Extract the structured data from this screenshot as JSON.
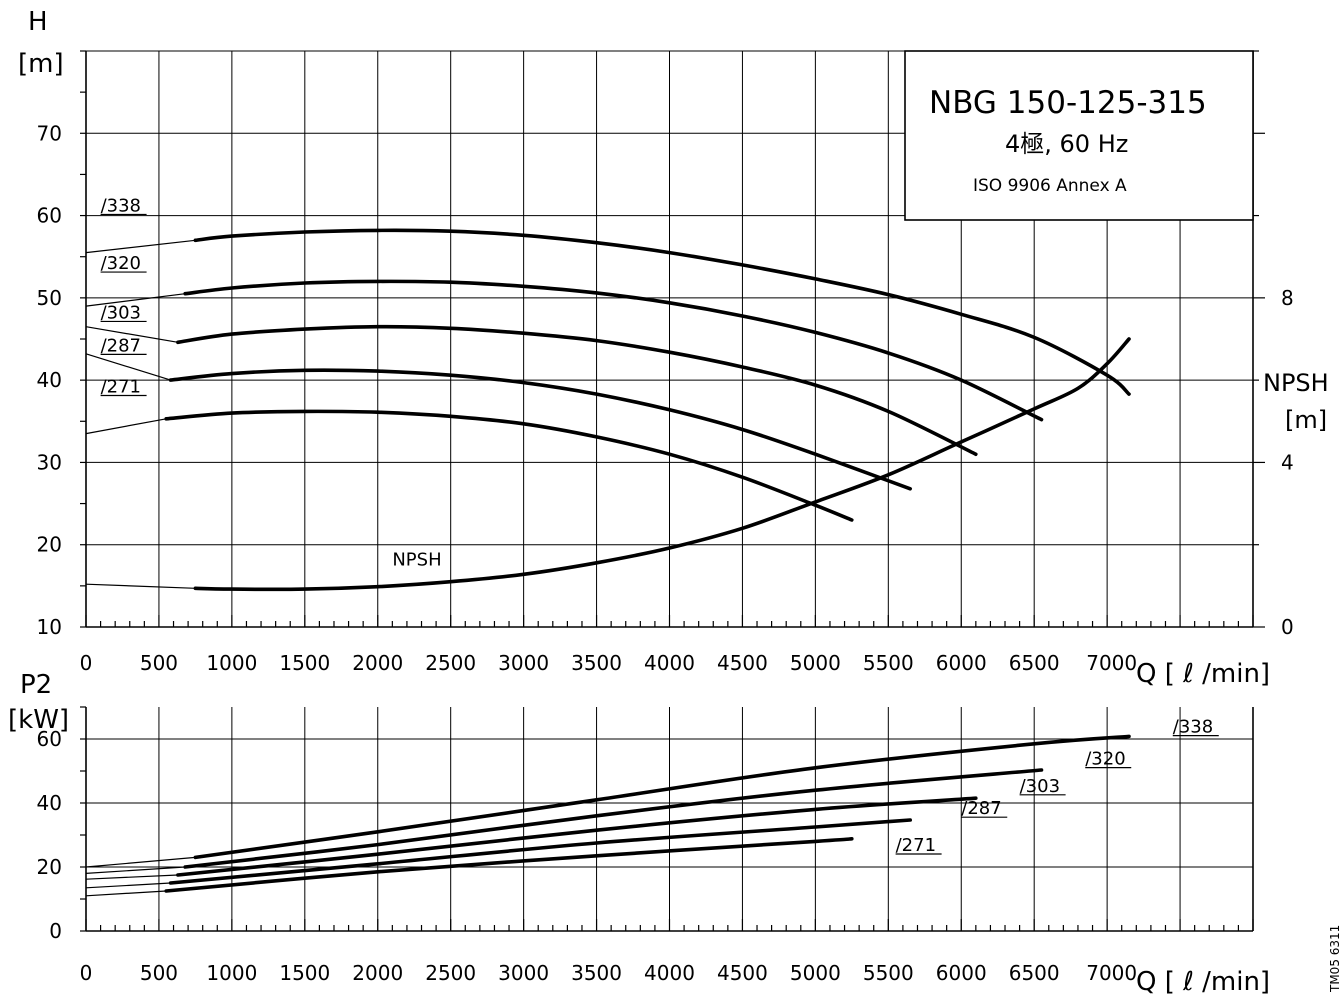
{
  "title_box": {
    "model": "NBG 150-125-315",
    "subtitle": "4極, 60 Hz",
    "standard": "ISO 9906 Annex A"
  },
  "doc_code": "TM05 6311",
  "colors": {
    "ink": "#000000",
    "background": "#ffffff"
  },
  "chart_data": [
    {
      "id": "head",
      "type": "line",
      "xlabel": "Q [ ℓ /min]",
      "ylabel_line1": "H",
      "ylabel_line2": "[m]",
      "xlim": [
        0,
        8000
      ],
      "ylim": [
        10,
        80
      ],
      "x_ticks": [
        0,
        500,
        1000,
        1500,
        2000,
        2500,
        3000,
        3500,
        4000,
        4500,
        5000,
        5500,
        6000,
        6500,
        7000
      ],
      "x_tick_labels": [
        "0",
        "500",
        "1000",
        "1500",
        "2000",
        "2500",
        "3000",
        "3500",
        "4000",
        "4500",
        "5000",
        "5500",
        "6000",
        "6500",
        "7000"
      ],
      "y_ticks": [
        10,
        20,
        30,
        40,
        50,
        60,
        70
      ],
      "y_tick_labels": [
        "10",
        "20",
        "30",
        "40",
        "50",
        "60",
        "70"
      ],
      "secondary_axis": {
        "label_line1": "NPSH",
        "label_line2": "[m]",
        "range": [
          0,
          14
        ],
        "ticks": [
          0,
          4,
          8
        ],
        "tick_labels": [
          "0",
          "4",
          "8"
        ]
      },
      "grid": true,
      "series": [
        {
          "name": "/338",
          "label_at": [
            100,
            60.5
          ],
          "extension": [
            [
              0,
              55.5
            ],
            [
              750,
              57
            ]
          ],
          "x": [
            750,
            1000,
            1500,
            2000,
            2500,
            3000,
            3500,
            4000,
            4500,
            5000,
            5500,
            6000,
            6500,
            7000,
            7150
          ],
          "y": [
            57,
            57.5,
            58,
            58.2,
            58.1,
            57.6,
            56.7,
            55.5,
            54,
            52.3,
            50.4,
            48,
            45.2,
            40.6,
            38.3
          ]
        },
        {
          "name": "/320",
          "label_at": [
            100,
            53.5
          ],
          "extension": [
            [
              0,
              49
            ],
            [
              680,
              50.5
            ]
          ],
          "x": [
            680,
            1000,
            1500,
            2000,
            2500,
            3000,
            3500,
            4000,
            4500,
            5000,
            5500,
            6000,
            6550
          ],
          "y": [
            50.5,
            51.2,
            51.8,
            52,
            51.9,
            51.4,
            50.6,
            49.4,
            47.8,
            45.8,
            43.3,
            40,
            35.2
          ]
        },
        {
          "name": "/303",
          "label_at": [
            100,
            47.5
          ],
          "extension": [
            [
              0,
              46.5
            ],
            [
              630,
              44.6
            ]
          ],
          "x": [
            630,
            1000,
            1500,
            2000,
            2500,
            3000,
            3500,
            4000,
            4500,
            5000,
            5500,
            6100
          ],
          "y": [
            44.6,
            45.6,
            46.2,
            46.5,
            46.3,
            45.7,
            44.8,
            43.4,
            41.6,
            39.4,
            36.2,
            31
          ]
        },
        {
          "name": "/287",
          "label_at": [
            100,
            43.5
          ],
          "extension": [
            [
              0,
              43.2
            ],
            [
              580,
              40
            ]
          ],
          "x": [
            580,
            1000,
            1500,
            2000,
            2500,
            3000,
            3500,
            4000,
            4500,
            5000,
            5650
          ],
          "y": [
            40,
            40.8,
            41.2,
            41.1,
            40.6,
            39.7,
            38.3,
            36.4,
            34,
            31,
            26.8
          ]
        },
        {
          "name": "/271",
          "label_at": [
            100,
            38.5
          ],
          "extension": [
            [
              0,
              33.5
            ],
            [
              550,
              35.3
            ]
          ],
          "x": [
            550,
            1000,
            1500,
            2000,
            2500,
            3000,
            3500,
            4000,
            4500,
            5000,
            5250
          ],
          "y": [
            35.3,
            36,
            36.2,
            36.1,
            35.6,
            34.7,
            33.1,
            31,
            28.2,
            24.8,
            23
          ]
        },
        {
          "name": "NPSH",
          "axis": "secondary",
          "label_at": [
            2100,
            17.5
          ],
          "extension": [
            [
              0,
              15.2
            ],
            [
              750,
              14.7
            ]
          ],
          "x": [
            750,
            1000,
            1500,
            2000,
            2500,
            3000,
            3500,
            4000,
            4500,
            5000,
            5500,
            6000,
            6500,
            6800,
            7000,
            7150
          ],
          "y": [
            0.94,
            0.92,
            0.92,
            0.98,
            1.1,
            1.28,
            1.56,
            1.92,
            2.4,
            3.04,
            3.7,
            4.5,
            5.3,
            5.8,
            6.4,
            7.0
          ]
        }
      ]
    },
    {
      "id": "power",
      "type": "line",
      "xlabel": "Q [ ℓ /min]",
      "ylabel_line1": "P2",
      "ylabel_line2": "[kW]",
      "xlim": [
        0,
        8000
      ],
      "ylim": [
        0,
        70
      ],
      "x_ticks": [
        0,
        500,
        1000,
        1500,
        2000,
        2500,
        3000,
        3500,
        4000,
        4500,
        5000,
        5500,
        6000,
        6500,
        7000
      ],
      "x_tick_labels": [
        "0",
        "500",
        "1000",
        "1500",
        "2000",
        "2500",
        "3000",
        "3500",
        "4000",
        "4500",
        "5000",
        "5500",
        "6000",
        "6500",
        "7000"
      ],
      "y_ticks": [
        0,
        20,
        40,
        60
      ],
      "y_tick_labels": [
        "0",
        "20",
        "40",
        "60"
      ],
      "grid": true,
      "series": [
        {
          "name": "/338",
          "label_at": [
            7450,
            62
          ],
          "extension": [
            [
              0,
              20
            ],
            [
              750,
              23
            ]
          ],
          "x": [
            750,
            2000,
            3500,
            5000,
            6500,
            7150
          ],
          "y": [
            23,
            31,
            41,
            51,
            58.5,
            60.8
          ]
        },
        {
          "name": "/320",
          "label_at": [
            6850,
            52
          ],
          "extension": [
            [
              0,
              18
            ],
            [
              680,
              20
            ]
          ],
          "x": [
            680,
            2000,
            3500,
            5000,
            6550
          ],
          "y": [
            20,
            27,
            36,
            44,
            50.3
          ]
        },
        {
          "name": "/303",
          "label_at": [
            6400,
            43.5
          ],
          "extension": [
            [
              0,
              16.2
            ],
            [
              630,
              17.5
            ]
          ],
          "x": [
            630,
            2000,
            3500,
            5000,
            6100
          ],
          "y": [
            17.5,
            24,
            31.5,
            38,
            41.5
          ]
        },
        {
          "name": "/287",
          "label_at": [
            6000,
            36.5
          ],
          "extension": [
            [
              0,
              13.5
            ],
            [
              580,
              15
            ]
          ],
          "x": [
            580,
            2000,
            3500,
            5000,
            5650
          ],
          "y": [
            15,
            21,
            27.5,
            32.5,
            34.7
          ]
        },
        {
          "name": "/271",
          "label_at": [
            5550,
            25
          ],
          "extension": [
            [
              0,
              11
            ],
            [
              550,
              12.5
            ]
          ],
          "x": [
            550,
            2000,
            3500,
            5000,
            5250
          ],
          "y": [
            12.5,
            18.5,
            23.5,
            28,
            28.8
          ]
        }
      ]
    }
  ]
}
